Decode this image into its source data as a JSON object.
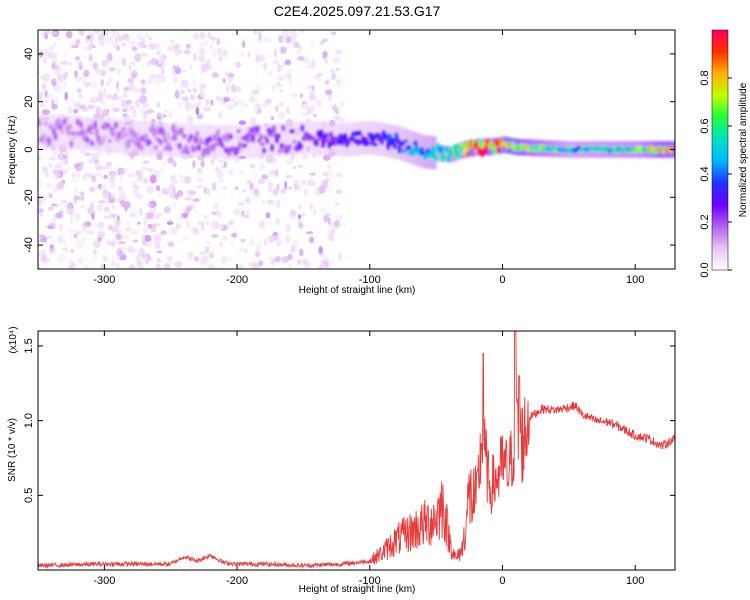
{
  "title": "C2E4.2025.097.21.53.G17",
  "chart_data": [
    {
      "type": "heatmap",
      "xlabel": "Height of straight line (km)",
      "ylabel": "Frequency (Hz)",
      "xlim": [
        -350,
        130
      ],
      "ylim": [
        -50,
        50
      ],
      "xticks": [
        -300,
        -200,
        -100,
        0,
        100
      ],
      "yticks": [
        -40,
        -20,
        0,
        20,
        40
      ],
      "colorbar": {
        "label": "Normalized spectral amplitude",
        "range": [
          0.0,
          1.0
        ],
        "ticks": [
          0.0,
          0.2,
          0.4,
          0.6,
          0.8
        ],
        "colormap": [
          "#ffffff",
          "#e8c6f4",
          "#b060f0",
          "#6a00ff",
          "#2030ff",
          "#00b8ff",
          "#00e0c0",
          "#20ff40",
          "#c0ff00",
          "#ffb000",
          "#ff3000",
          "#ff0060"
        ]
      },
      "ridge": {
        "x": [
          -350,
          -300,
          -250,
          -200,
          -150,
          -120,
          -100,
          -80,
          -60,
          -40,
          -30,
          -20,
          -10,
          0,
          10,
          50,
          100,
          130
        ],
        "y": [
          8,
          6,
          4,
          3,
          5,
          4,
          5,
          3,
          -1,
          -2,
          0,
          1,
          1,
          2,
          1,
          0,
          0,
          0
        ],
        "amplitude": [
          0.15,
          0.16,
          0.18,
          0.2,
          0.22,
          0.28,
          0.3,
          0.35,
          0.45,
          0.55,
          0.7,
          0.85,
          0.9,
          0.95,
          0.8,
          0.5,
          0.6,
          0.9
        ]
      }
    },
    {
      "type": "line",
      "xlabel": "Height of straight line (km)",
      "ylabel": "SNR (10 * v/v)",
      "scale_label": "(x10⁴)",
      "xlim": [
        -350,
        130
      ],
      "ylim": [
        0,
        1.6
      ],
      "xticks": [
        -300,
        -200,
        -100,
        0,
        100
      ],
      "yticks": [
        0.5,
        1.0,
        1.5
      ],
      "ytick_labels": [
        "0.5",
        "1.0",
        "1.5"
      ],
      "line_color": "#e83a3a",
      "series": [
        {
          "x": [
            -350,
            -300,
            -250,
            -240,
            -230,
            -220,
            -210,
            -200,
            -180,
            -150,
            -120,
            -100,
            -90,
            -80,
            -70,
            -60,
            -50,
            -45,
            -40,
            -35,
            -30,
            -25,
            -20,
            -15,
            -10,
            -5,
            0,
            5,
            10,
            15,
            20,
            30,
            40,
            50,
            55,
            60,
            70,
            80,
            90,
            100,
            110,
            120,
            130
          ],
          "values": [
            0.03,
            0.04,
            0.04,
            0.09,
            0.06,
            0.1,
            0.05,
            0.04,
            0.04,
            0.03,
            0.04,
            0.06,
            0.12,
            0.2,
            0.25,
            0.3,
            0.35,
            0.45,
            0.2,
            0.07,
            0.15,
            0.5,
            0.45,
            0.9,
            0.55,
            0.6,
            0.7,
            0.65,
            0.95,
            0.85,
            1.02,
            1.08,
            1.07,
            1.09,
            1.1,
            1.04,
            1.0,
            0.99,
            0.95,
            0.9,
            0.88,
            0.83,
            0.88
          ]
        }
      ]
    }
  ]
}
